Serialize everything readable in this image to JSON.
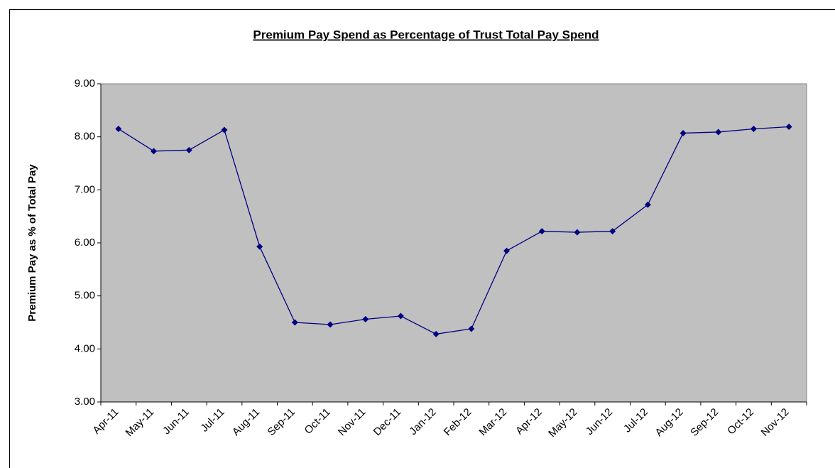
{
  "chart_data": {
    "type": "line",
    "title": "Premium Pay Spend as Percentage of Trust Total Pay Spend",
    "y_label": "Premium Pay as % of Total Pay",
    "categories": [
      "Apr-11",
      "May-11",
      "Jun-11",
      "Jul-11",
      "Aug-11",
      "Sep-11",
      "Oct-11",
      "Nov-11",
      "Dec-11",
      "Jan-12",
      "Feb-12",
      "Mar-12",
      "Apr-12",
      "May-12",
      "Jun-12",
      "Jul-12",
      "Aug-12",
      "Sep-12",
      "Oct-12",
      "Nov-12"
    ],
    "series": [
      {
        "color": "#000080",
        "values": [
          8.15,
          7.73,
          7.75,
          8.13,
          5.93,
          4.5,
          4.46,
          4.56,
          4.62,
          4.28,
          4.38,
          5.85,
          6.22,
          6.2,
          6.22,
          6.72,
          8.07,
          8.09,
          8.15,
          8.19
        ]
      }
    ],
    "ylim": [
      3,
      9
    ],
    "yticks": [
      {
        "value": 3,
        "label": "3.00"
      },
      {
        "value": 4,
        "label": "4.00"
      },
      {
        "value": 5,
        "label": "5.00"
      },
      {
        "value": 6,
        "label": "6.00"
      },
      {
        "value": 7,
        "label": "7.00"
      },
      {
        "value": 8,
        "label": "8.00"
      },
      {
        "value": 9,
        "label": "9.00"
      }
    ],
    "plot_background": "#c0c0c0"
  }
}
